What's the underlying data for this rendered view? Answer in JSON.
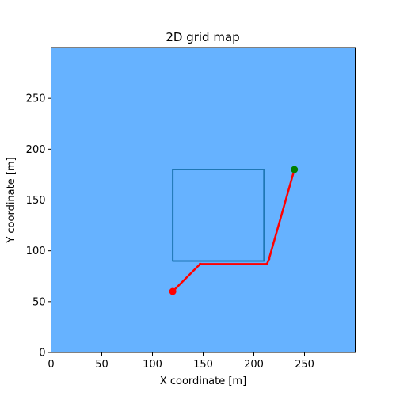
{
  "chart_data": {
    "type": "line",
    "title": "2D grid map",
    "xlabel": "X coordinate [m]",
    "ylabel": "Y coordinate [m]",
    "xlim": [
      0,
      300
    ],
    "ylim": [
      0,
      300
    ],
    "xticks": [
      0,
      50,
      100,
      150,
      200,
      250
    ],
    "yticks": [
      0,
      50,
      100,
      150,
      200,
      250
    ],
    "grid": false,
    "background_color": "#66b2ff",
    "series": [
      {
        "kind": "rectangle-outline",
        "color": "#1f77b4",
        "x": [
          120,
          210,
          210,
          120,
          120
        ],
        "y": [
          90,
          90,
          180,
          180,
          90
        ]
      },
      {
        "kind": "path",
        "color": "#ff0000",
        "x": [
          120,
          147,
          213,
          215,
          240
        ],
        "y": [
          60,
          87,
          87,
          92,
          180
        ]
      }
    ],
    "markers": [
      {
        "x": 120,
        "y": 60,
        "color": "#ff0000"
      },
      {
        "x": 240,
        "y": 180,
        "color": "#008000"
      }
    ]
  }
}
